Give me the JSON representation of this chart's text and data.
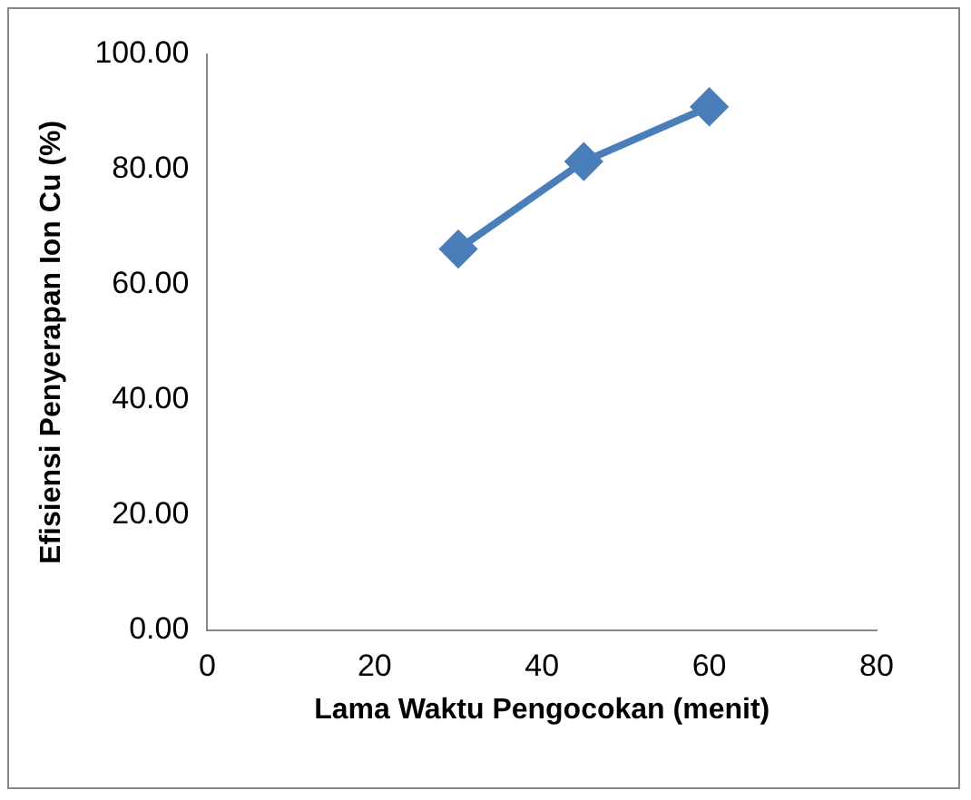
{
  "chart_data": {
    "type": "line",
    "xlabel": "Lama Waktu Pengocokan (menit)",
    "ylabel": "Efisiensi Penyerapan Ion Cu (%)",
    "x": [
      30,
      45,
      60
    ],
    "series": [
      {
        "color": "#4a7ebb",
        "values": [
          66.2,
          81.4,
          90.9
        ]
      }
    ],
    "xlim": [
      0,
      80
    ],
    "xticks": [
      0,
      20,
      40,
      60,
      80
    ],
    "ylim": [
      0,
      100
    ],
    "yticks": [
      {
        "value": 0,
        "label": "0.00"
      },
      {
        "value": 20,
        "label": "20.00"
      },
      {
        "value": 40,
        "label": "40.00"
      },
      {
        "value": 60,
        "label": "60.00"
      },
      {
        "value": 80,
        "label": "80.00"
      },
      {
        "value": 100,
        "label": "100.00"
      }
    ],
    "grid": false,
    "legend": false,
    "marker": "diamond",
    "line_style": "solid"
  }
}
